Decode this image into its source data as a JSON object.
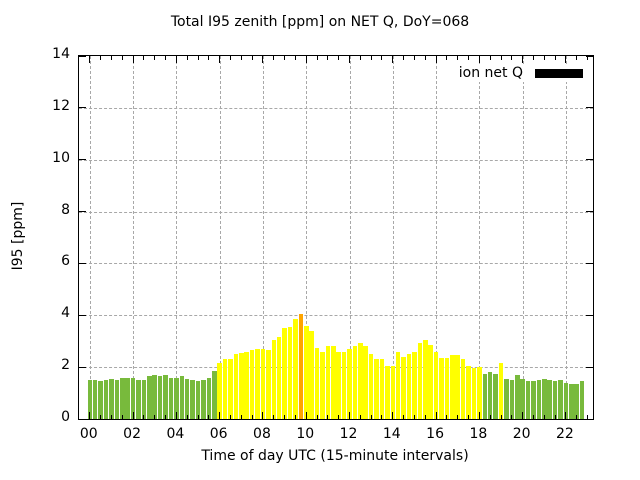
{
  "title": "Total I95 zenith [ppm] on NET Q, DoY=068",
  "legend": {
    "label": "ion net Q",
    "swatch_color": "#000000"
  },
  "chart_data": {
    "type": "bar",
    "title": "Total I95 zenith [ppm] on NET Q, DoY=068",
    "xlabel": "Time of day UTC (15-minute intervals)",
    "ylabel": "I95 [ppm]",
    "xlim": [
      -0.5,
      23.25
    ],
    "ylim": [
      0,
      14
    ],
    "grid": true,
    "legend_position": "top-right",
    "interval_minutes": 15,
    "x_tick_labels": [
      "00",
      "02",
      "04",
      "06",
      "08",
      "10",
      "12",
      "14",
      "16",
      "18",
      "20",
      "22"
    ],
    "x_tick_hours": [
      0,
      2,
      4,
      6,
      8,
      10,
      12,
      14,
      16,
      18,
      20,
      22
    ],
    "y_ticks": [
      0,
      2,
      4,
      6,
      8,
      10,
      12,
      14
    ],
    "y_gridlines": [
      2,
      4,
      6,
      8,
      10,
      12
    ],
    "colors": {
      "g": "#78ba3c",
      "y": "#ffff00",
      "o": "#ffa500"
    },
    "series_name": "ion net Q",
    "start_time": "00:00",
    "times": [
      "00:00",
      "00:15",
      "00:30",
      "00:45",
      "01:00",
      "01:15",
      "01:30",
      "01:45",
      "02:00",
      "02:15",
      "02:30",
      "02:45",
      "03:00",
      "03:15",
      "03:30",
      "03:45",
      "04:00",
      "04:15",
      "04:30",
      "04:45",
      "05:00",
      "05:15",
      "05:30",
      "05:45",
      "06:00",
      "06:15",
      "06:30",
      "06:45",
      "07:00",
      "07:15",
      "07:30",
      "07:45",
      "08:00",
      "08:15",
      "08:30",
      "08:45",
      "09:00",
      "09:15",
      "09:30",
      "09:45",
      "10:00",
      "10:15",
      "10:30",
      "10:45",
      "11:00",
      "11:15",
      "11:30",
      "11:45",
      "12:00",
      "12:15",
      "12:30",
      "12:45",
      "13:00",
      "13:15",
      "13:30",
      "13:45",
      "14:00",
      "14:15",
      "14:30",
      "14:45",
      "15:00",
      "15:15",
      "15:30",
      "15:45",
      "16:00",
      "16:15",
      "16:30",
      "16:45",
      "17:00",
      "17:15",
      "17:30",
      "17:45",
      "18:00",
      "18:15",
      "18:30",
      "18:45",
      "19:00",
      "19:15",
      "19:30",
      "19:45",
      "20:00",
      "20:15",
      "20:30",
      "20:45",
      "21:00",
      "21:15",
      "21:30",
      "21:45",
      "22:00",
      "22:15",
      "22:30",
      "22:45"
    ],
    "values": [
      1.5,
      1.5,
      1.45,
      1.5,
      1.55,
      1.5,
      1.6,
      1.6,
      1.6,
      1.5,
      1.5,
      1.65,
      1.7,
      1.65,
      1.7,
      1.6,
      1.6,
      1.65,
      1.55,
      1.5,
      1.45,
      1.5,
      1.6,
      1.85,
      2.15,
      2.3,
      2.3,
      2.5,
      2.55,
      2.6,
      2.65,
      2.7,
      2.7,
      2.65,
      3.05,
      3.15,
      3.5,
      3.55,
      3.85,
      4.05,
      3.6,
      3.4,
      2.75,
      2.6,
      2.8,
      2.8,
      2.6,
      2.6,
      2.7,
      2.8,
      2.95,
      2.8,
      2.5,
      2.3,
      2.3,
      2.05,
      2.05,
      2.6,
      2.4,
      2.5,
      2.6,
      2.95,
      3.05,
      2.85,
      2.6,
      2.35,
      2.35,
      2.45,
      2.45,
      2.3,
      2.05,
      1.95,
      2.0,
      1.75,
      1.8,
      1.75,
      2.15,
      1.55,
      1.5,
      1.7,
      1.55,
      1.45,
      1.45,
      1.5,
      1.55,
      1.5,
      1.45,
      1.5,
      1.4,
      1.35,
      1.35,
      1.45
    ],
    "bar_colors": [
      "g",
      "g",
      "g",
      "g",
      "g",
      "g",
      "g",
      "g",
      "g",
      "g",
      "g",
      "g",
      "g",
      "g",
      "g",
      "g",
      "g",
      "g",
      "g",
      "g",
      "g",
      "g",
      "g",
      "g",
      "y",
      "y",
      "y",
      "y",
      "y",
      "y",
      "y",
      "y",
      "y",
      "y",
      "y",
      "y",
      "y",
      "y",
      "y",
      "o",
      "y",
      "y",
      "y",
      "y",
      "y",
      "y",
      "y",
      "y",
      "y",
      "y",
      "y",
      "y",
      "y",
      "y",
      "y",
      "y",
      "y",
      "y",
      "y",
      "y",
      "y",
      "y",
      "y",
      "y",
      "y",
      "y",
      "y",
      "y",
      "y",
      "y",
      "y",
      "y",
      "y",
      "g",
      "g",
      "g",
      "y",
      "g",
      "g",
      "g",
      "g",
      "g",
      "g",
      "g",
      "g",
      "g",
      "g",
      "g",
      "g",
      "g",
      "g",
      "g"
    ]
  }
}
